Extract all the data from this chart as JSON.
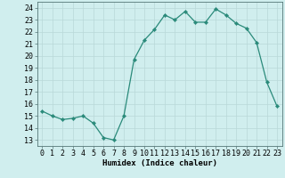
{
  "x": [
    0,
    1,
    2,
    3,
    4,
    5,
    6,
    7,
    8,
    9,
    10,
    11,
    12,
    13,
    14,
    15,
    16,
    17,
    18,
    19,
    20,
    21,
    22,
    23
  ],
  "y": [
    15.4,
    15.0,
    14.7,
    14.8,
    15.0,
    14.4,
    13.2,
    13.0,
    15.0,
    19.7,
    21.3,
    22.2,
    23.4,
    23.0,
    23.7,
    22.8,
    22.8,
    23.9,
    23.4,
    22.7,
    22.3,
    21.1,
    17.8,
    15.8
  ],
  "xlabel": "Humidex (Indice chaleur)",
  "xlim": [
    -0.5,
    23.5
  ],
  "ylim": [
    12.5,
    24.5
  ],
  "yticks": [
    13,
    14,
    15,
    16,
    17,
    18,
    19,
    20,
    21,
    22,
    23,
    24
  ],
  "xtick_labels": [
    "0",
    "1",
    "2",
    "3",
    "4",
    "5",
    "6",
    "7",
    "8",
    "9",
    "10",
    "11",
    "12",
    "13",
    "14",
    "15",
    "16",
    "17",
    "18",
    "19",
    "20",
    "21",
    "22",
    "23"
  ],
  "line_color": "#2a8a7a",
  "marker_color": "#2a8a7a",
  "bg_color": "#d0eeee",
  "grid_color": "#b8d8d8",
  "axis_fontsize": 6.5,
  "tick_fontsize": 6
}
